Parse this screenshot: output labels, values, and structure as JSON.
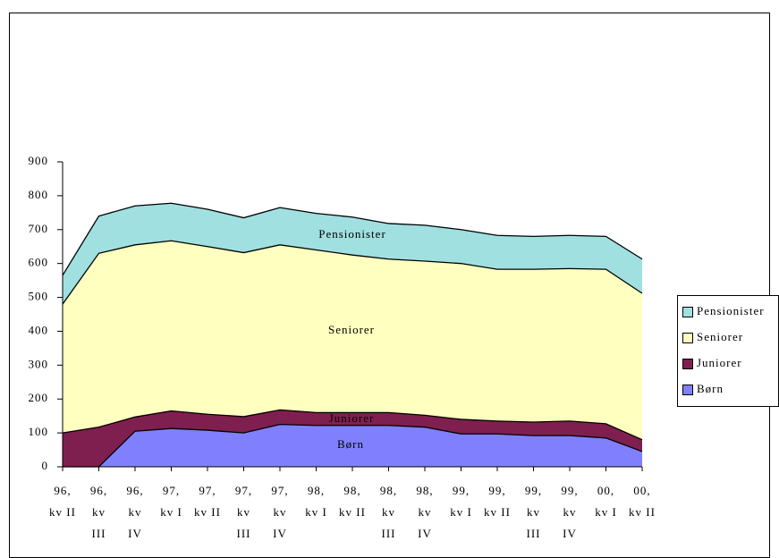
{
  "chart_data": {
    "type": "stacked-area",
    "categories": [
      "96, kv II",
      "96, kv III",
      "96, kv IV",
      "97, kv I",
      "97, kv II",
      "97, kv III",
      "97, kv IV",
      "98, kv I",
      "98, kv II",
      "98, kv III",
      "98, kv IV",
      "99, kv I",
      "99, kv II",
      "99, kv III",
      "99, kv IV",
      "00, kv I",
      "00, kv II"
    ],
    "series": [
      {
        "name": "Børn",
        "color": "#8080ff",
        "values": [
          0,
          0,
          105,
          113,
          108,
          100,
          125,
          122,
          122,
          122,
          117,
          97,
          97,
          92,
          92,
          85,
          45
        ]
      },
      {
        "name": "Juniorer",
        "color": "#7f1f4f",
        "values": [
          100,
          117,
          42,
          52,
          47,
          48,
          43,
          38,
          38,
          38,
          35,
          43,
          38,
          40,
          43,
          42,
          35
        ]
      },
      {
        "name": "Seniorer",
        "color": "#ffffc0",
        "values": [
          380,
          513,
          508,
          502,
          495,
          484,
          487,
          480,
          465,
          453,
          455,
          460,
          448,
          451,
          450,
          456,
          432
        ]
      },
      {
        "name": "Pensionister",
        "color": "#a0e0e0",
        "values": [
          85,
          110,
          115,
          111,
          110,
          103,
          110,
          108,
          112,
          105,
          106,
          100,
          100,
          97,
          98,
          97,
          101
        ]
      }
    ],
    "ylim": [
      0,
      900
    ],
    "yticks": [
      0,
      100,
      200,
      300,
      400,
      500,
      600,
      700,
      800,
      900
    ],
    "legend": "right"
  }
}
